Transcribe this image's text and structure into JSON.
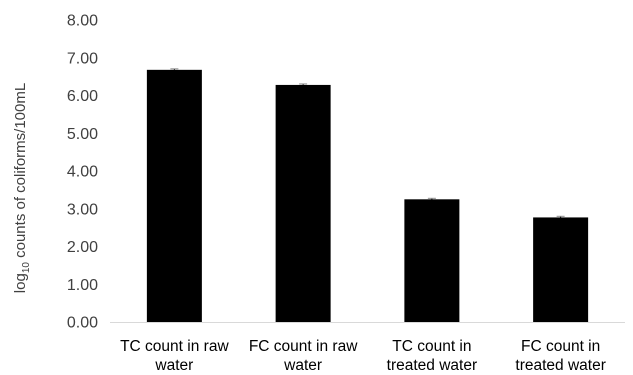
{
  "chart_data": {
    "type": "bar",
    "categories": [
      [
        "TC count in raw",
        "water"
      ],
      [
        "FC count in raw",
        "water"
      ],
      [
        "TC count in",
        "treated water"
      ],
      [
        "FC count in",
        "treated water"
      ]
    ],
    "values": [
      6.68,
      6.28,
      3.25,
      2.77
    ],
    "error": [
      0.02,
      0.02,
      0.02,
      0.03
    ],
    "ylabel": {
      "prefix": "log",
      "subscript": "10",
      "rest": " counts of coliforms/100mL"
    },
    "ylim": [
      0,
      8
    ],
    "yticks": [
      "0.00",
      "1.00",
      "2.00",
      "3.00",
      "4.00",
      "5.00",
      "6.00",
      "7.00",
      "8.00"
    ],
    "grid": false,
    "legend": "none",
    "colors": {
      "bar": "#000000",
      "axis": "#d9d9d9",
      "text": "#404040"
    }
  }
}
